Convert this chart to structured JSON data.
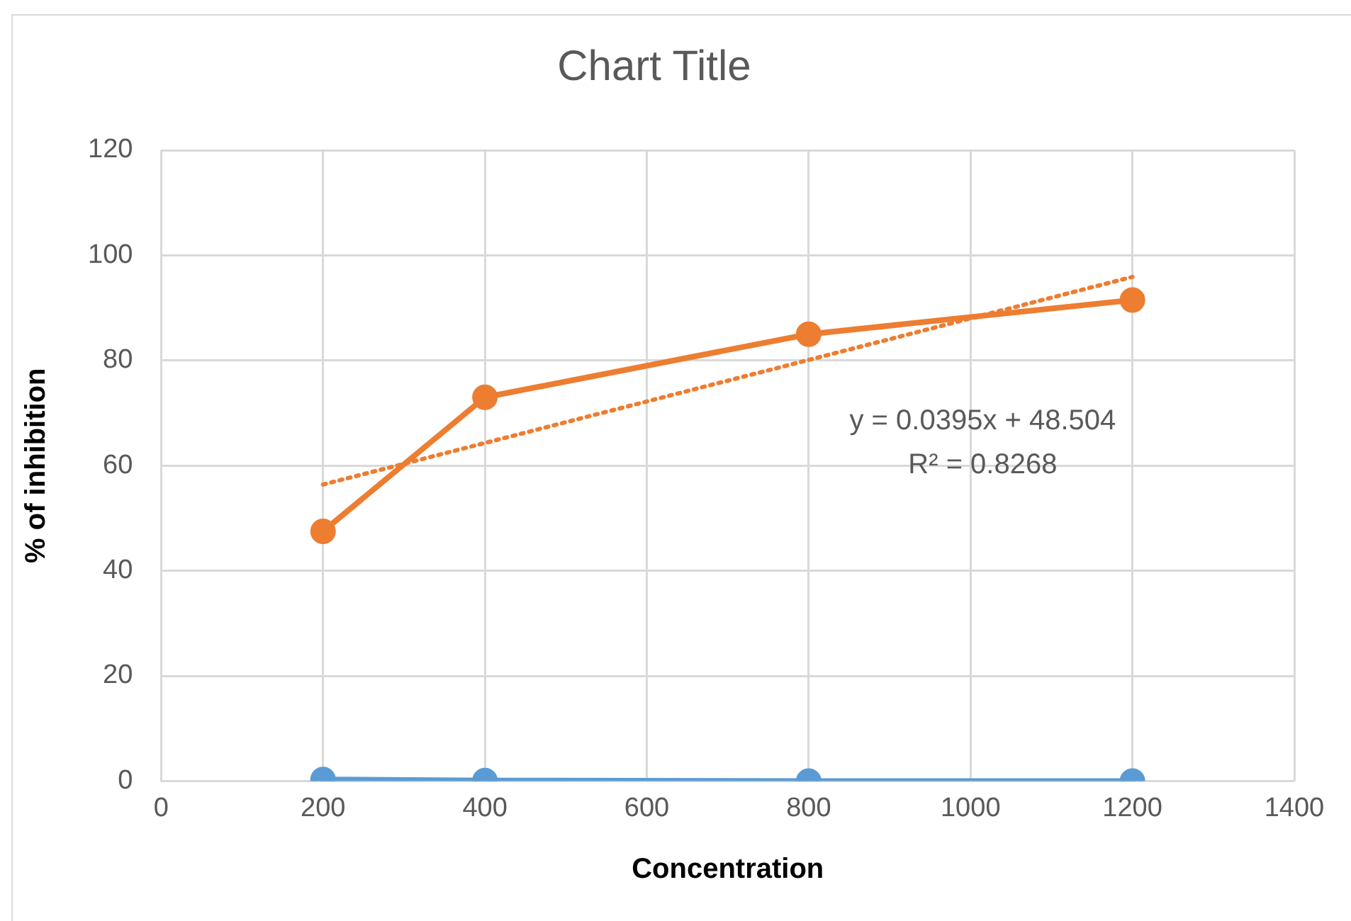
{
  "chart_data": {
    "type": "line",
    "title": "Chart Title",
    "xlabel": "Concentration",
    "ylabel": "% of inhibition",
    "x": [
      200,
      400,
      800,
      1200
    ],
    "series": [
      {
        "color": "#5b9bd5",
        "values": [
          0.3,
          0.1,
          0,
          0
        ]
      },
      {
        "color": "#ed7d31",
        "values": [
          47.5,
          73,
          85,
          91.5
        ]
      },
      {
        "color": "#ed7d31",
        "x": [
          200,
          1200
        ],
        "values": [
          56.4,
          95.9
        ],
        "marker": "none",
        "line_style": "dotted"
      }
    ],
    "xlim": [
      0,
      1400
    ],
    "xticks": [
      0,
      200,
      400,
      600,
      800,
      1000,
      1200,
      1400
    ],
    "ylim": [
      0,
      120
    ],
    "yticks": [
      0,
      20,
      40,
      60,
      80,
      100,
      120
    ],
    "grid": true,
    "legend": false,
    "marker": "circle",
    "line_style": "solid",
    "annotations": [
      "y = 0.0395x + 48.504",
      "R² = 0.8268"
    ]
  }
}
